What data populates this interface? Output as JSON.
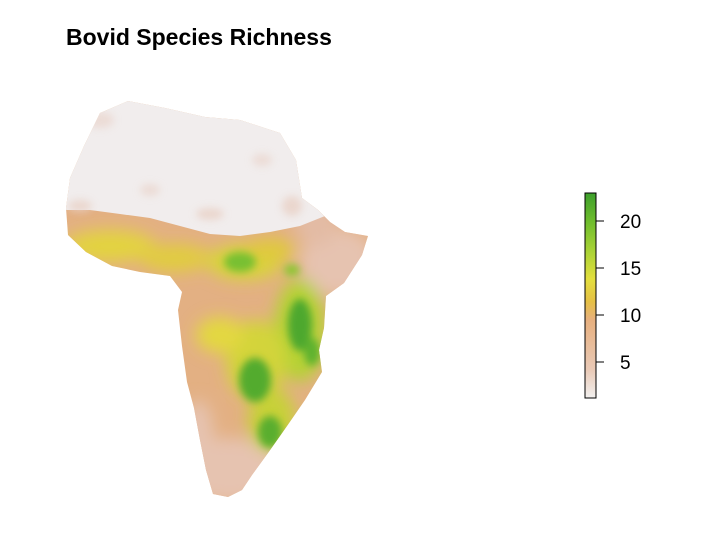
{
  "title": "Bovid Species Richness",
  "map": {
    "region": "Africa",
    "variable": "species richness"
  },
  "legend": {
    "min": 1,
    "max": 23,
    "ticks": [
      5,
      10,
      15,
      20
    ],
    "tick_labels": [
      "5",
      "10",
      "15",
      "20"
    ],
    "colors": [
      "#f2f0ef",
      "#e9c9b6",
      "#e7b07f",
      "#e5c045",
      "#e3df3e",
      "#a8d235",
      "#6fbd2d",
      "#3d9f2c"
    ]
  }
}
